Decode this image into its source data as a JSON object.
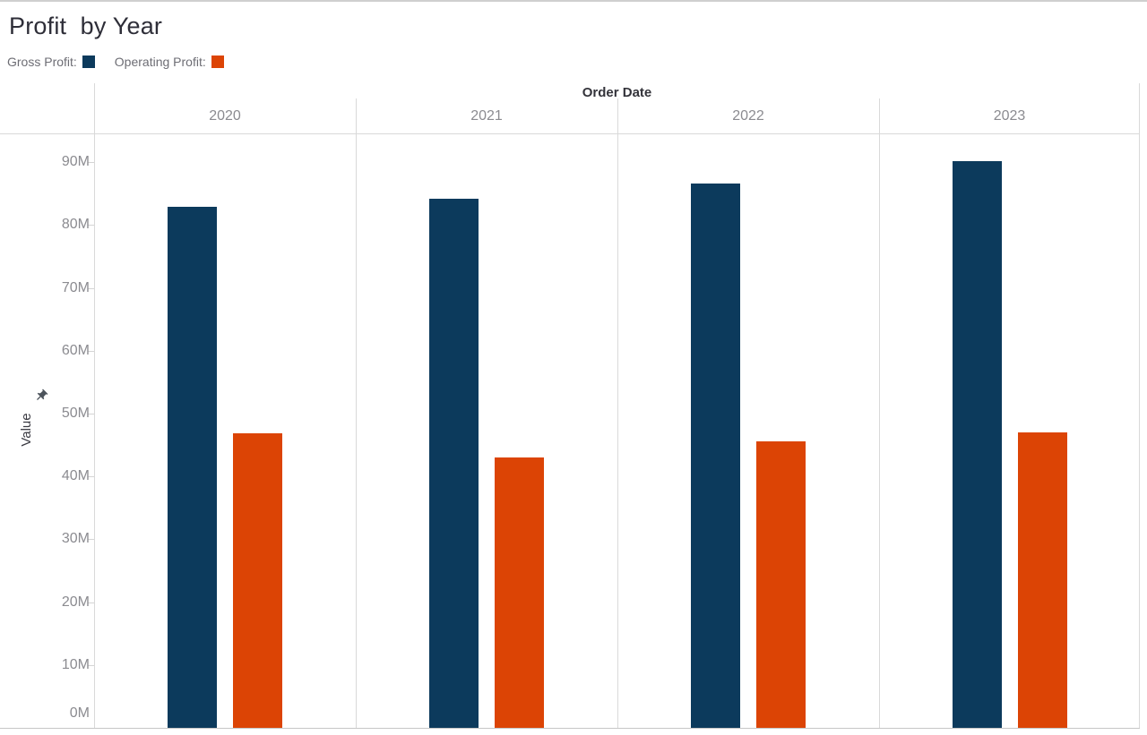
{
  "title": "Profit  by Year",
  "legend": {
    "items": [
      {
        "label": "Gross Profit:",
        "color": "#0c3a5c"
      },
      {
        "label": "Operating Profit:",
        "color": "#dc4405"
      }
    ]
  },
  "chart_data": {
    "type": "bar",
    "title": "Profit by Year",
    "column_header": "Order Date",
    "categories": [
      "2020",
      "2021",
      "2022",
      "2023"
    ],
    "series": [
      {
        "name": "Gross Profit",
        "color": "#0c3a5c",
        "values": [
          82.9,
          84.2,
          86.6,
          90.2
        ]
      },
      {
        "name": "Operating Profit",
        "color": "#dc4405",
        "values": [
          46.9,
          43.0,
          45.6,
          47.0
        ]
      }
    ],
    "unit": "M",
    "ylabel": "Value",
    "y_ticks": [
      "0M",
      "10M",
      "20M",
      "30M",
      "40M",
      "50M",
      "60M",
      "70M",
      "80M",
      "90M"
    ],
    "ylim": [
      0,
      94.4
    ],
    "grid": false,
    "legend_position": "top-left",
    "y_axis_icon": "pin-icon"
  }
}
